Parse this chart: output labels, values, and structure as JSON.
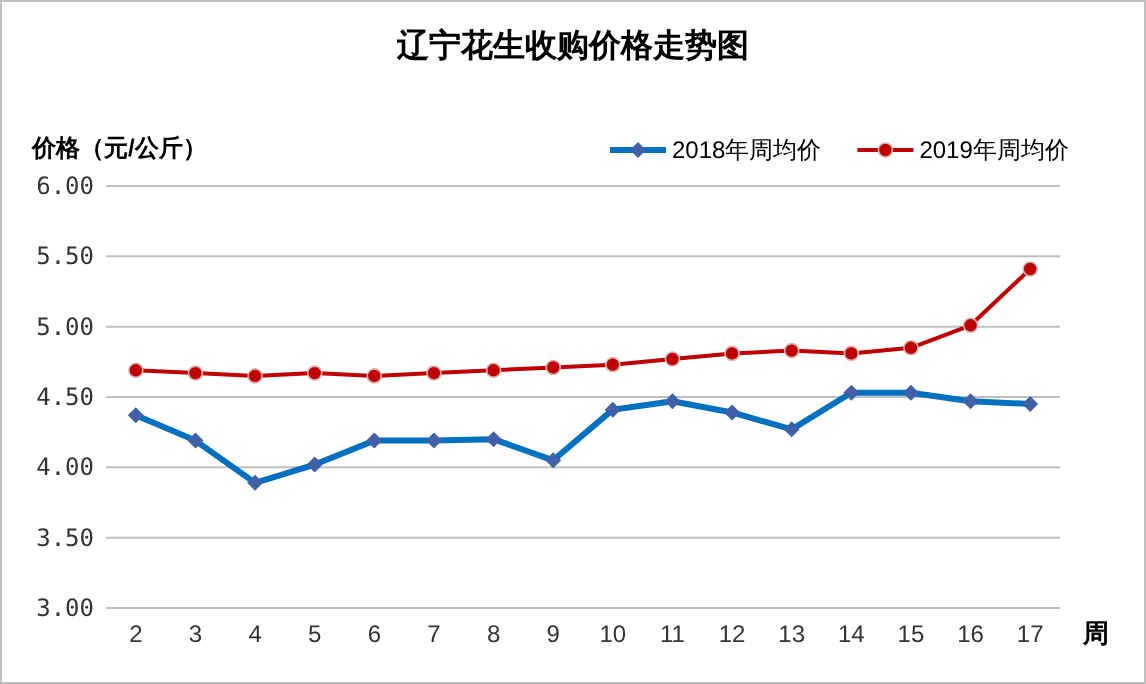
{
  "chart_data": {
    "type": "line",
    "title": "辽宁花生收购价格走势图",
    "ylabel": "价格（元/公斤）",
    "xlabel": "周",
    "categories": [
      "2",
      "3",
      "4",
      "5",
      "6",
      "7",
      "8",
      "9",
      "10",
      "11",
      "12",
      "13",
      "14",
      "15",
      "16",
      "17"
    ],
    "series": [
      {
        "name": "2018年周均价",
        "color": "#0070c0",
        "marker": "diamond",
        "values": [
          4.37,
          4.19,
          3.89,
          4.02,
          4.19,
          4.19,
          4.2,
          4.05,
          4.41,
          4.47,
          4.39,
          4.27,
          4.53,
          4.53,
          4.47,
          4.45
        ]
      },
      {
        "name": "2019年周均价",
        "color": "#c00000",
        "marker": "circle",
        "values": [
          4.69,
          4.67,
          4.65,
          4.67,
          4.65,
          4.67,
          4.69,
          4.71,
          4.73,
          4.77,
          4.81,
          4.83,
          4.81,
          4.85,
          5.01,
          5.41
        ]
      }
    ],
    "ylim": [
      3,
      6
    ],
    "yticks": [
      {
        "value": 3,
        "label": "3.00"
      },
      {
        "value": 3.5,
        "label": "3.50"
      },
      {
        "value": 4,
        "label": "4.00"
      },
      {
        "value": 4.5,
        "label": "4.50"
      },
      {
        "value": 5,
        "label": "5.00"
      },
      {
        "value": 5.5,
        "label": "5.50"
      },
      {
        "value": 6,
        "label": "6.00"
      }
    ],
    "grid": "y",
    "legend": "top right"
  }
}
